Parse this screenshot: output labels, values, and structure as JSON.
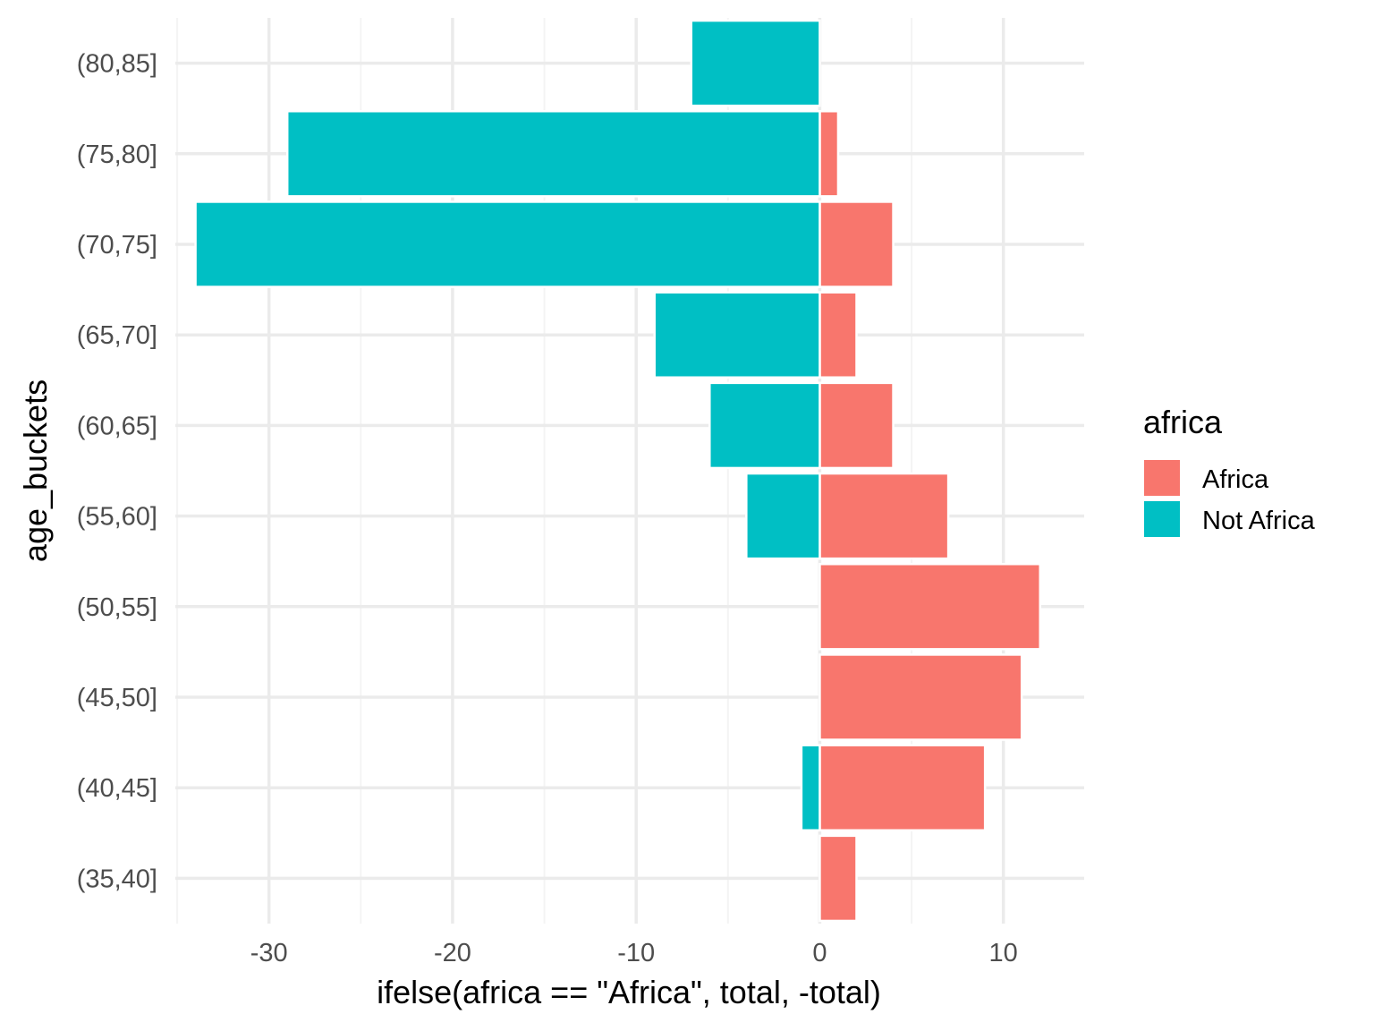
{
  "chart_data": {
    "type": "bar",
    "orientation": "horizontal",
    "stacking": "diverging",
    "categories": [
      "(35,40]",
      "(40,45]",
      "(45,50]",
      "(50,55]",
      "(55,60]",
      "(60,65]",
      "(65,70]",
      "(70,75]",
      "(75,80]",
      "(80,85]"
    ],
    "series": [
      {
        "name": "Africa",
        "color": "#F8766D",
        "values": [
          2,
          9,
          11,
          12,
          7,
          4,
          2,
          4,
          1,
          0
        ]
      },
      {
        "name": "Not Africa",
        "color": "#00BFC4",
        "values": [
          0,
          -1,
          0,
          0,
          -4,
          -6,
          -9,
          -34,
          -29,
          -7
        ]
      }
    ],
    "xlabel": "ifelse(africa == \"Africa\", total, -total)",
    "ylabel": "age_buckets",
    "xlim": [
      -35.1,
      14.4
    ],
    "x_ticks": [
      -30,
      -20,
      -10,
      0,
      10
    ],
    "x_tick_labels": [
      "-30",
      "-20",
      "-10",
      "0",
      "10"
    ],
    "legend": {
      "title": "africa",
      "position": "right",
      "entries": [
        "Africa",
        "Not Africa"
      ]
    },
    "grid": true,
    "theme": "minimal"
  },
  "colors": {
    "africa": "#F8766D",
    "not_africa": "#00BFC4",
    "grid_major": "#EBEBEB",
    "grid_minor": "#F4F4F4",
    "tick_text": "#4D4D4D"
  }
}
